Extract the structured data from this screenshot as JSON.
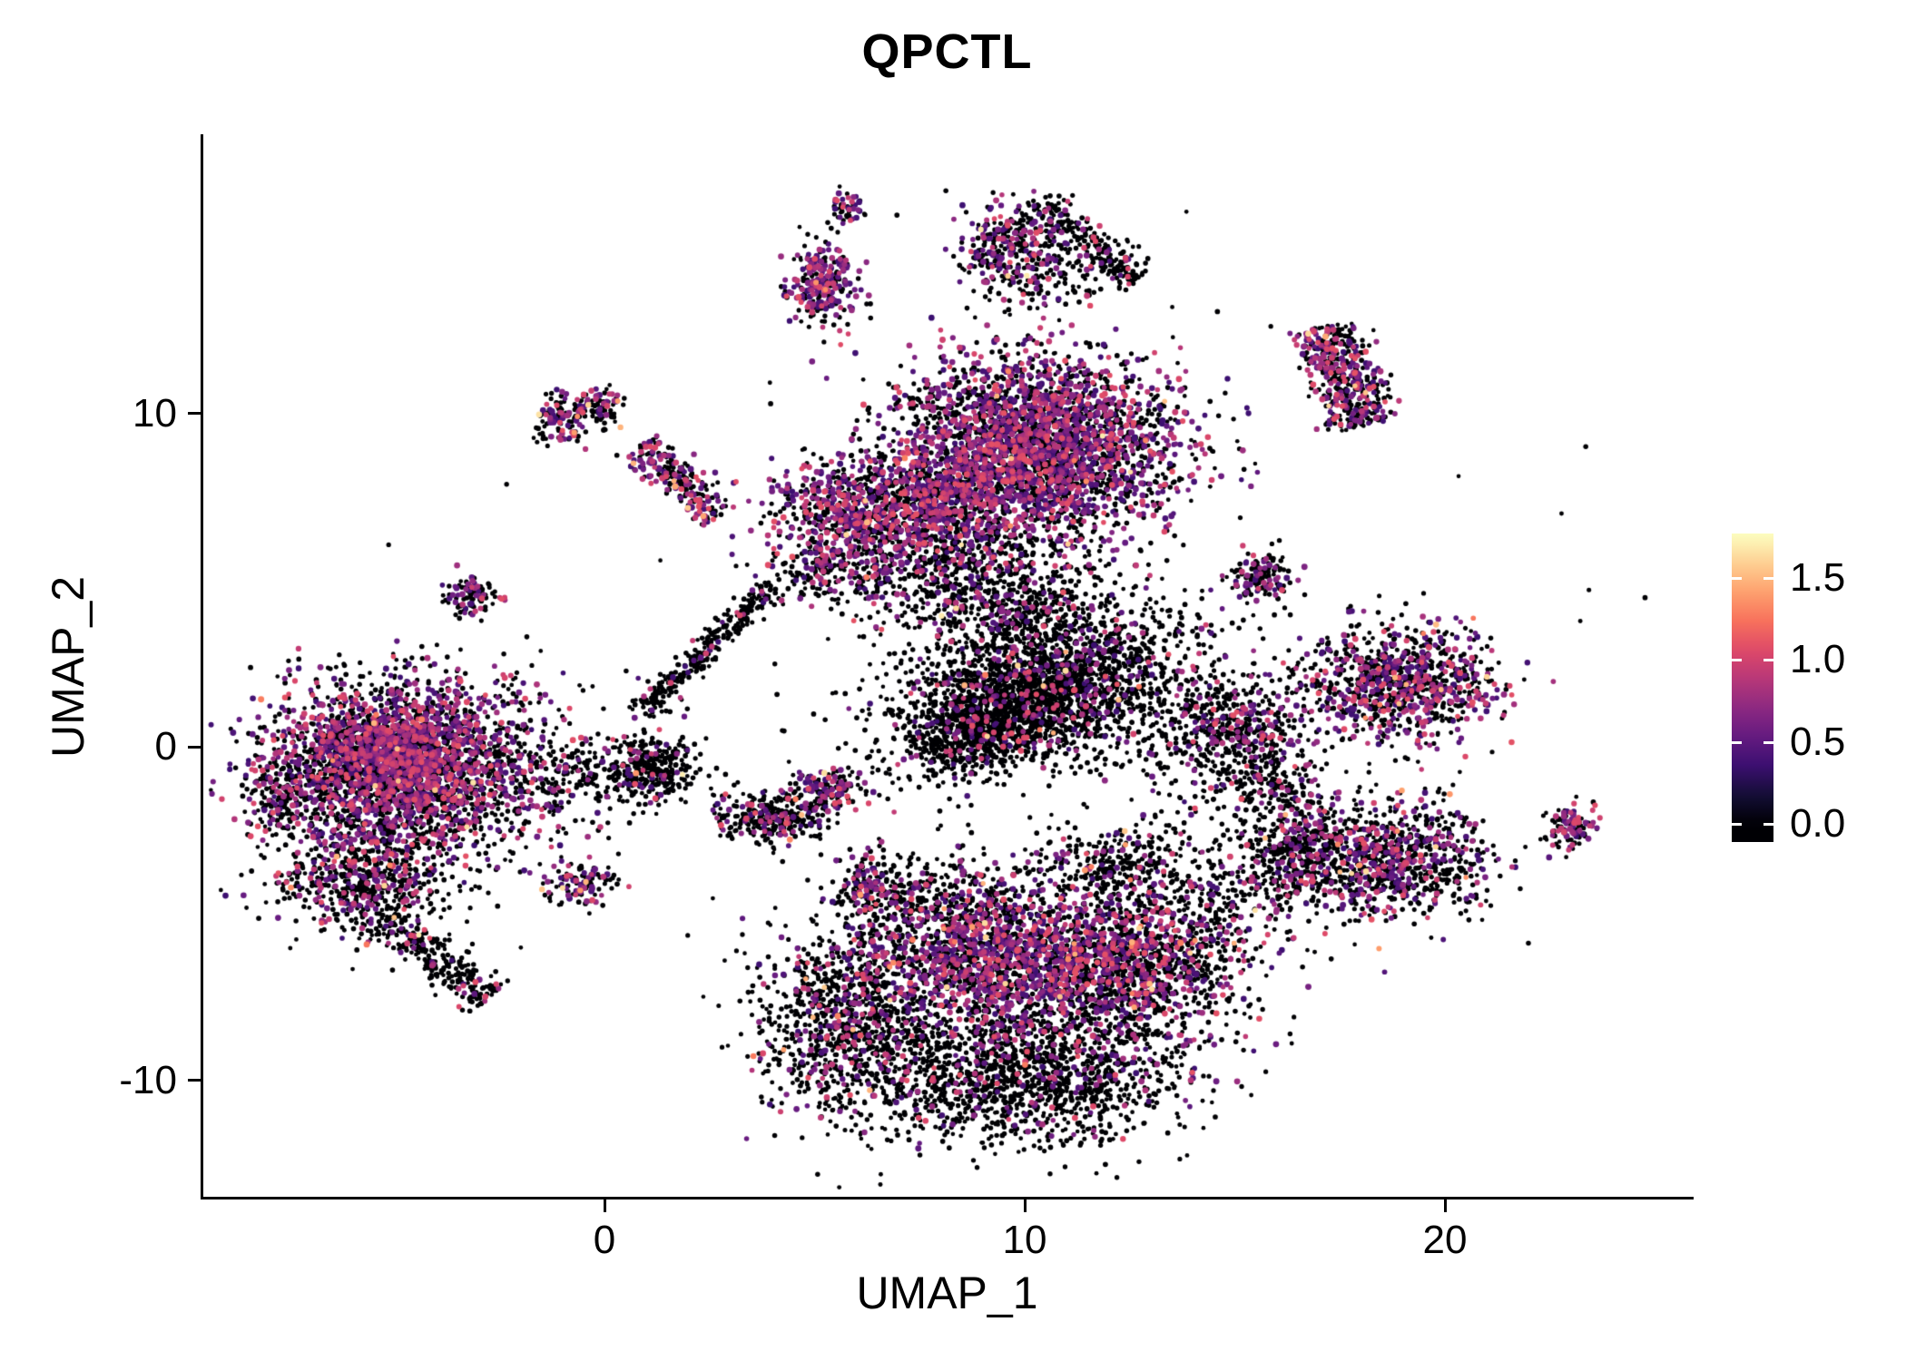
{
  "chart_data": {
    "type": "scatter",
    "title": "QPCTL",
    "xlabel": "UMAP_1",
    "ylabel": "UMAP_2",
    "x_ticks": [
      0,
      10,
      20
    ],
    "y_ticks": [
      10,
      0,
      -10
    ],
    "xlim": [
      -9.5,
      25.8
    ],
    "ylim": [
      -13.5,
      18.3
    ],
    "grid": false,
    "background": "#ffffff",
    "vmax": 1.76,
    "legend": {
      "position": "right",
      "tick_values": [
        1.5,
        1.0,
        0.5,
        0.0
      ],
      "tick_labels": [
        "1.5",
        "1.0",
        "0.5",
        "0.0"
      ]
    },
    "colormap_name": "magma",
    "colormap_stops": [
      [
        0.0,
        "#000004"
      ],
      [
        0.1,
        "#140e36"
      ],
      [
        0.2,
        "#3b0f70"
      ],
      [
        0.3,
        "#641a80"
      ],
      [
        0.4,
        "#8c2981"
      ],
      [
        0.5,
        "#b73779"
      ],
      [
        0.6,
        "#de4968"
      ],
      [
        0.7,
        "#f7705c"
      ],
      [
        0.8,
        "#fe9f6d"
      ],
      [
        0.9,
        "#fecf92"
      ],
      [
        1.0,
        "#fcfdbf"
      ]
    ],
    "point_style": {
      "radius_zero": 2.6,
      "radius_expr": 3.1
    },
    "clusters": [
      {
        "name": "left-main",
        "cx": -4.7,
        "cy": -0.7,
        "sx": 1.75,
        "sy": 1.35,
        "n": 2600,
        "p": 0.42,
        "hi": 0.004
      },
      {
        "name": "left-main-core",
        "cx": -5.2,
        "cy": -0.1,
        "sx": 1.0,
        "sy": 0.75,
        "n": 900,
        "p": 0.5,
        "hi": 0.004
      },
      {
        "name": "left-lower",
        "cx": -5.7,
        "cy": -4.0,
        "sx": 1.05,
        "sy": 0.85,
        "n": 600,
        "p": 0.28,
        "hi": 0.003
      },
      {
        "name": "left-tail",
        "shape": "streak",
        "x1": -5.2,
        "y1": -5.2,
        "x2": -2.8,
        "y2": -7.6,
        "w": 0.3,
        "n": 260,
        "p": 0.1,
        "hi": 0.004
      },
      {
        "name": "left-edge-point",
        "cx": -7.7,
        "cy": -1.5,
        "sx": 0.45,
        "sy": 0.55,
        "n": 130,
        "p": 0.3,
        "hi": 0
      },
      {
        "name": "small-below-left",
        "cx": -0.6,
        "cy": -4.1,
        "sx": 0.4,
        "sy": 0.33,
        "n": 110,
        "p": 0.35,
        "hi": 0.02
      },
      {
        "name": "ring-connector",
        "cx": 1.1,
        "cy": -0.7,
        "sx": 0.55,
        "sy": 0.5,
        "n": 320,
        "p": 0.1,
        "hi": 0.003
      },
      {
        "name": "connector-scatter",
        "cx": -0.5,
        "cy": -0.8,
        "sx": 0.85,
        "sy": 0.55,
        "n": 160,
        "p": 0.1,
        "hi": 0
      },
      {
        "name": "diagonal-streak",
        "shape": "streak",
        "x1": 0.8,
        "y1": 1.0,
        "x2": 4.0,
        "y2": 4.8,
        "w": 0.18,
        "n": 300,
        "p": 0.08,
        "hi": 0
      },
      {
        "name": "top-left-lobe",
        "cx": 6.3,
        "cy": 7.0,
        "sx": 1.15,
        "sy": 0.95,
        "n": 1000,
        "p": 0.5,
        "hi": 0.006
      },
      {
        "name": "top-right-lobe",
        "cx": 10.4,
        "cy": 9.0,
        "sx": 1.55,
        "sy": 1.35,
        "n": 2800,
        "p": 0.5,
        "hi": 0.004
      },
      {
        "name": "top-bridge",
        "cx": 8.3,
        "cy": 7.8,
        "sx": 0.9,
        "sy": 0.9,
        "n": 500,
        "p": 0.45,
        "hi": 0.004
      },
      {
        "name": "top-below-scatter",
        "cx": 8.6,
        "cy": 5.4,
        "sx": 1.6,
        "sy": 1.0,
        "n": 650,
        "p": 0.2,
        "hi": 0.008
      },
      {
        "name": "top-under-left",
        "cx": 5.0,
        "cy": 5.2,
        "sx": 0.5,
        "sy": 0.4,
        "n": 100,
        "p": 0.15,
        "hi": 0
      },
      {
        "name": "mid-dark",
        "cx": 10.5,
        "cy": 1.7,
        "sx": 1.9,
        "sy": 1.05,
        "rot": 18,
        "n": 2300,
        "p": 0.12,
        "hi": 0.003
      },
      {
        "name": "mid-dark-2",
        "cx": 9.0,
        "cy": 0.6,
        "sx": 0.9,
        "sy": 0.6,
        "rot": 25,
        "n": 500,
        "p": 0.1,
        "hi": 0
      },
      {
        "name": "mid-upper-scatter",
        "cx": 9.6,
        "cy": 3.9,
        "sx": 1.1,
        "sy": 0.8,
        "n": 350,
        "p": 0.18,
        "hi": 0.006
      },
      {
        "name": "bottom-left",
        "cx": 5.7,
        "cy": -8.2,
        "sx": 1.05,
        "sy": 1.35,
        "n": 950,
        "p": 0.18,
        "hi": 0.008
      },
      {
        "name": "bottom-mid",
        "cx": 9.3,
        "cy": -6.4,
        "sx": 1.6,
        "sy": 1.15,
        "n": 1700,
        "p": 0.45,
        "hi": 0.008
      },
      {
        "name": "bottom-right",
        "cx": 12.6,
        "cy": -6.5,
        "sx": 1.35,
        "sy": 1.2,
        "n": 1300,
        "p": 0.35,
        "hi": 0.008
      },
      {
        "name": "bottom-low",
        "cx": 9.9,
        "cy": -9.9,
        "sx": 2.0,
        "sy": 1.05,
        "n": 1500,
        "p": 0.12,
        "hi": 0.004
      },
      {
        "name": "bottom-upper-fringe",
        "cx": 7.6,
        "cy": -4.6,
        "sx": 1.3,
        "sy": 0.7,
        "n": 350,
        "p": 0.15,
        "hi": 0.012
      },
      {
        "name": "bottom-right-notch",
        "cx": 12.3,
        "cy": -3.7,
        "sx": 1.2,
        "sy": 0.65,
        "n": 320,
        "p": 0.12,
        "hi": 0.015
      },
      {
        "name": "right-upper",
        "cx": 18.9,
        "cy": 1.9,
        "sx": 1.15,
        "sy": 0.85,
        "n": 950,
        "p": 0.4,
        "hi": 0.008
      },
      {
        "name": "right-lower-west",
        "cx": 16.6,
        "cy": -3.1,
        "sx": 0.8,
        "sy": 0.9,
        "n": 520,
        "p": 0.25,
        "hi": 0.006
      },
      {
        "name": "right-lower-east",
        "cx": 18.9,
        "cy": -3.4,
        "sx": 1.05,
        "sy": 0.9,
        "n": 750,
        "p": 0.3,
        "hi": 0.006
      },
      {
        "name": "mid-right-small",
        "cx": 15.0,
        "cy": 0.6,
        "sx": 0.7,
        "sy": 0.7,
        "n": 380,
        "p": 0.25,
        "hi": 0.004
      },
      {
        "name": "mid-right-tail",
        "cx": 15.9,
        "cy": -1.0,
        "sx": 0.5,
        "sy": 0.5,
        "n": 150,
        "p": 0.12,
        "hi": 0
      },
      {
        "name": "small-upper-right",
        "cx": 15.6,
        "cy": 5.1,
        "sx": 0.38,
        "sy": 0.36,
        "n": 130,
        "p": 0.3,
        "hi": 0
      },
      {
        "name": "right-top-vertical",
        "shape": "streak",
        "x1": 17.1,
        "y1": 12.6,
        "x2": 18.0,
        "y2": 9.6,
        "w": 0.42,
        "n": 480,
        "p": 0.45,
        "hi": 0.01
      },
      {
        "name": "top-bird-body",
        "cx": 9.6,
        "cy": 14.9,
        "sx": 0.55,
        "sy": 0.75,
        "n": 300,
        "p": 0.4,
        "hi": 0.006
      },
      {
        "name": "top-bird-arm",
        "shape": "streak",
        "x1": 10.3,
        "y1": 16.3,
        "x2": 12.7,
        "y2": 14.0,
        "w": 0.28,
        "n": 240,
        "p": 0.15,
        "hi": 0.004
      },
      {
        "name": "top-bird-under",
        "cx": 10.8,
        "cy": 14.0,
        "sx": 0.7,
        "sy": 0.5,
        "n": 90,
        "p": 0.15,
        "hi": 0
      },
      {
        "name": "top-small-cluster",
        "cx": 5.2,
        "cy": 13.8,
        "sx": 0.4,
        "sy": 0.6,
        "n": 280,
        "p": 0.55,
        "hi": 0.01
      },
      {
        "name": "top-tiny-cluster",
        "cx": 5.8,
        "cy": 16.1,
        "sx": 0.22,
        "sy": 0.3,
        "n": 50,
        "p": 0.5,
        "hi": 0
      },
      {
        "name": "small-nw-a",
        "cx": -1.0,
        "cy": 9.8,
        "sx": 0.32,
        "sy": 0.38,
        "n": 120,
        "p": 0.4,
        "hi": 0.018
      },
      {
        "name": "small-nw-b",
        "cx": -0.1,
        "cy": 10.2,
        "sx": 0.26,
        "sy": 0.3,
        "n": 80,
        "p": 0.5,
        "hi": 0.025
      },
      {
        "name": "nw-diagonal",
        "shape": "streak",
        "x1": 0.9,
        "y1": 9.1,
        "x2": 2.7,
        "y2": 6.9,
        "w": 0.28,
        "n": 240,
        "p": 0.45,
        "hi": 0.018
      },
      {
        "name": "small-west",
        "cx": -3.2,
        "cy": 4.5,
        "sx": 0.32,
        "sy": 0.32,
        "n": 100,
        "p": 0.45,
        "hi": 0.02
      },
      {
        "name": "small-center-a",
        "cx": 4.0,
        "cy": -2.1,
        "sx": 0.65,
        "sy": 0.4,
        "n": 300,
        "p": 0.2,
        "hi": 0.005
      },
      {
        "name": "small-center-b",
        "cx": 5.3,
        "cy": -1.3,
        "sx": 0.45,
        "sy": 0.33,
        "n": 150,
        "p": 0.45,
        "hi": 0.01
      },
      {
        "name": "small-center-c",
        "cx": 6.3,
        "cy": -4.0,
        "sx": 0.3,
        "sy": 0.36,
        "n": 100,
        "p": 0.4,
        "hi": 0.02
      },
      {
        "name": "far-right-tiny",
        "cx": 23.0,
        "cy": -2.4,
        "sx": 0.3,
        "sy": 0.32,
        "n": 110,
        "p": 0.5,
        "hi": 0.01
      },
      {
        "name": "sparse-mid-right",
        "cx": 14.0,
        "cy": -0.6,
        "sx": 1.1,
        "sy": 0.9,
        "n": 130,
        "p": 0.1,
        "hi": 0
      },
      {
        "name": "sparse-bottom-right",
        "cx": 14.9,
        "cy": -4.6,
        "sx": 0.9,
        "sy": 0.7,
        "n": 140,
        "p": 0.15,
        "hi": 0
      },
      {
        "name": "sparse-top-gap",
        "cx": 7.8,
        "cy": 10.3,
        "sx": 0.5,
        "sy": 0.4,
        "n": 60,
        "p": 0.3,
        "hi": 0
      },
      {
        "name": "sparse-background",
        "cx": 8.5,
        "cy": 2.0,
        "sx": 6.0,
        "sy": 5.5,
        "n": 150,
        "p": 0.08,
        "hi": 0
      }
    ]
  }
}
